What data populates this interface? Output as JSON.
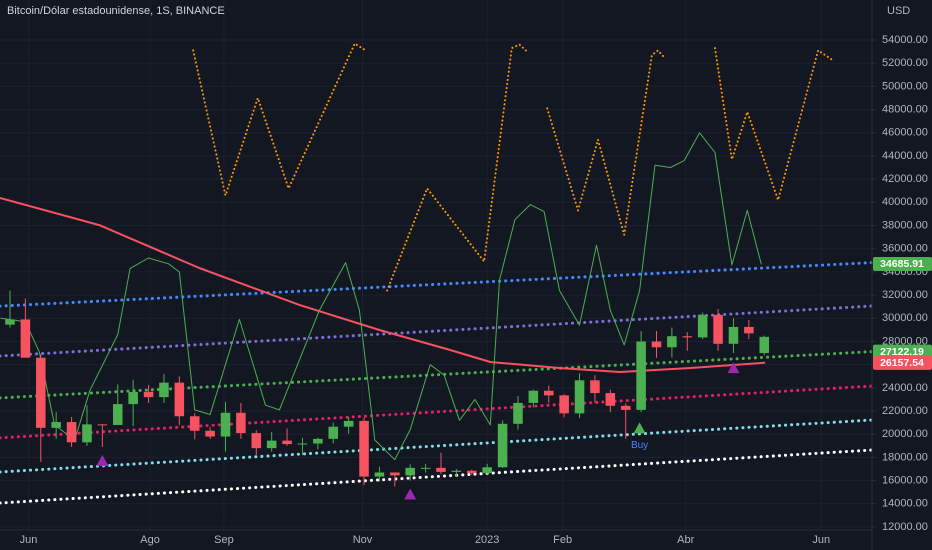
{
  "chart_data": {
    "type": "candlestick",
    "title": "Bitcoin/Dólar estadounidense, 1S, BINANCE",
    "y_label": "USD",
    "xlim": [
      -0.65,
      56
    ],
    "ylim": [
      11740,
      57450
    ],
    "grid": true,
    "xticks": [
      {
        "value": 1.2,
        "label": "Jun"
      },
      {
        "value": 9.1,
        "label": "Ago"
      },
      {
        "value": 13.9,
        "label": "Sep"
      },
      {
        "value": 22.9,
        "label": "Nov"
      },
      {
        "value": 31,
        "label": "2023"
      },
      {
        "value": 35.9,
        "label": "Feb"
      },
      {
        "value": 43.9,
        "label": "Abr"
      },
      {
        "value": 52.7,
        "label": "Jun"
      }
    ],
    "yticks": [
      {
        "value": 12000,
        "label": "12000.00"
      },
      {
        "value": 14000,
        "label": "14000.00"
      },
      {
        "value": 16000,
        "label": "16000.00"
      },
      {
        "value": 18000,
        "label": "18000.00"
      },
      {
        "value": 20000,
        "label": "20000.00"
      },
      {
        "value": 22000,
        "label": "22000.00"
      },
      {
        "value": 24000,
        "label": "24000.00"
      },
      {
        "value": 26000,
        "label": "26000.00"
      },
      {
        "value": 28000,
        "label": "28000.00"
      },
      {
        "value": 30000,
        "label": "30000.00"
      },
      {
        "value": 32000,
        "label": "32000.00"
      },
      {
        "value": 34000,
        "label": "34000.00"
      },
      {
        "value": 36000,
        "label": "36000.00"
      },
      {
        "value": 38000,
        "label": "38000.00"
      },
      {
        "value": 40000,
        "label": "40000.00"
      },
      {
        "value": 42000,
        "label": "42000.00"
      },
      {
        "value": 44000,
        "label": "44000.00"
      },
      {
        "value": 46000,
        "label": "46000.00"
      },
      {
        "value": 48000,
        "label": "48000.00"
      },
      {
        "value": 50000,
        "label": "50000.00"
      },
      {
        "value": 52000,
        "label": "52000.00"
      },
      {
        "value": 54000,
        "label": "54000.00"
      }
    ],
    "up_color": "#4caf50",
    "down_color": "#f7525f",
    "categories": [
      null,
      null,
      null,
      null,
      null,
      null,
      null,
      null,
      null,
      null,
      null,
      null,
      null,
      null,
      null,
      null,
      null,
      null,
      null,
      null,
      null,
      null,
      null,
      null,
      null,
      null,
      null,
      null,
      null,
      null,
      null,
      null,
      null,
      null,
      null,
      null,
      null,
      null,
      null,
      null,
      null,
      null,
      null,
      null,
      null,
      null,
      null,
      null,
      null,
      null
    ],
    "open": [
      29450,
      29900,
      26600,
      20550,
      21050,
      19300,
      20850,
      20800,
      22600,
      23650,
      23200,
      24450,
      21550,
      20300,
      19800,
      21850,
      20100,
      18800,
      19450,
      19150,
      19200,
      19600,
      20650,
      21150,
      16350,
      16700,
      16450,
      17100,
      17100,
      16750,
      16850,
      16650,
      17150,
      20900,
      22700,
      23750,
      23350,
      21800,
      24650,
      23550,
      22450,
      22100,
      28000,
      27500,
      28450,
      28350,
      30300,
      27800,
      29250,
      27000
    ],
    "high": [
      32400,
      31700,
      26900,
      21900,
      21500,
      22500,
      20900,
      24300,
      24700,
      24250,
      25200,
      25000,
      21800,
      20600,
      22800,
      22700,
      20350,
      20200,
      20500,
      19700,
      19700,
      21000,
      21500,
      21450,
      17200,
      16700,
      17400,
      17450,
      18400,
      17000,
      16950,
      17450,
      21200,
      23300,
      23850,
      24200,
      23450,
      25250,
      25100,
      23850,
      22650,
      28900,
      28900,
      29200,
      28800,
      30500,
      30800,
      30000,
      29850,
      28500
    ],
    "low": [
      29200,
      26600,
      17600,
      19600,
      18900,
      19000,
      18900,
      20800,
      20700,
      22700,
      22700,
      20800,
      19550,
      19600,
      18500,
      19600,
      18200,
      18500,
      19000,
      18200,
      18700,
      19200,
      20050,
      15600,
      15900,
      15500,
      16000,
      16700,
      16550,
      16350,
      16500,
      16550,
      17100,
      20400,
      22300,
      22700,
      21450,
      21400,
      22750,
      21900,
      19600,
      21900,
      26600,
      26600,
      27200,
      28200,
      27200,
      27000,
      28200,
      26800
    ],
    "close": [
      29900,
      26600,
      20550,
      21050,
      19300,
      20850,
      20800,
      22600,
      23650,
      23200,
      24450,
      21550,
      20300,
      19800,
      21850,
      20100,
      18800,
      19450,
      19150,
      19200,
      19600,
      20650,
      21150,
      16350,
      16700,
      16450,
      17100,
      17100,
      16750,
      16850,
      16650,
      17150,
      20900,
      22700,
      23750,
      23350,
      21800,
      24650,
      23550,
      22450,
      22100,
      28000,
      27500,
      28450,
      28350,
      30300,
      27800,
      29250,
      28700,
      28400
    ],
    "series": [
      {
        "color": "#448aff",
        "style": "dotted",
        "x": [
          -0.65,
          56
        ],
        "values": [
          31050,
          34800
        ]
      },
      {
        "color": "#7e6fd8",
        "style": "dotted",
        "x": [
          -0.65,
          56
        ],
        "values": [
          26750,
          31060
        ]
      },
      {
        "color": "#4caf50",
        "style": "dotted",
        "tag": true,
        "x": [
          -0.65,
          56
        ],
        "values": [
          23130,
          27122.19
        ]
      },
      {
        "color": "#e91e63",
        "style": "dotted",
        "x": [
          -0.65,
          56
        ],
        "values": [
          19680,
          24160
        ]
      },
      {
        "color": "#80deea",
        "style": "dotted",
        "x": [
          -0.65,
          56
        ],
        "values": [
          16740,
          21230
        ]
      },
      {
        "color": "#ffffff",
        "style": "dotted",
        "x": [
          -0.65,
          56
        ],
        "values": [
          14070,
          18640
        ]
      },
      {
        "color": "#f7525f",
        "style": "solid",
        "width": 2,
        "tag": true,
        "x": [
          -0.65,
          5.8,
          12.3,
          18.8,
          24,
          28.6,
          31.2,
          35.7,
          39.6,
          44.2,
          49
        ],
        "values": [
          40370,
          38040,
          34340,
          31150,
          28990,
          27260,
          26230,
          25710,
          25370,
          25710,
          26157.54
        ]
      },
      {
        "color": "#4caf50",
        "style": "solid",
        "width": 1,
        "tag": true,
        "x": [
          -0.6,
          1.0,
          1.9,
          2.9,
          4.2,
          5.2,
          7.0,
          7.8,
          9.0,
          10.3,
          11.0,
          12.0,
          13.0,
          14.9,
          16.6,
          17.5,
          20.1,
          21.8,
          22.7,
          23.7,
          25.0,
          26.0,
          27.3,
          28.2,
          29.2,
          30.2,
          31.2,
          31.8,
          32.8,
          33.8,
          34.7,
          35.7,
          37.0,
          38.1,
          39.0,
          39.9,
          40.9,
          41.9,
          42.9,
          43.8,
          44.8,
          45.8,
          46.9,
          47.9,
          48.8
        ],
        "values": [
          30000,
          29700,
          27100,
          20800,
          19500,
          23800,
          28600,
          34300,
          35200,
          34700,
          34000,
          22100,
          21700,
          29900,
          22500,
          22100,
          30700,
          34800,
          30700,
          19500,
          17800,
          20400,
          26000,
          25100,
          21200,
          23000,
          20800,
          33300,
          38500,
          39800,
          39200,
          32400,
          29400,
          36300,
          30700,
          27700,
          32400,
          43200,
          43000,
          43600,
          46000,
          44300,
          34600,
          39300,
          34685.91
        ]
      },
      {
        "color": "#ff9800",
        "style": "dotted",
        "width": 2,
        "x": [
          11.9,
          14.0,
          16.1,
          18.1,
          22.4,
          23.1,
          null,
          24.5,
          27.1,
          30.8,
          32.6,
          33.1,
          33.6,
          null,
          34.9,
          36.9,
          38.2,
          39.9,
          41.7,
          42.1,
          42.5,
          null,
          45.8,
          46.9,
          47.9,
          49.9,
          52.5,
          53.4
        ],
        "values": [
          53100,
          40600,
          49000,
          41200,
          53700,
          53100,
          null,
          32400,
          41200,
          34900,
          53300,
          53600,
          53000,
          null,
          48100,
          39300,
          45400,
          37200,
          52700,
          53100,
          52500,
          null,
          53300,
          43700,
          47800,
          40200,
          53100,
          52300
        ]
      }
    ],
    "markers": [
      {
        "color": "#9c27b0",
        "x": 6.0,
        "value": 17700
      },
      {
        "color": "#9c27b0",
        "x": 26.0,
        "value": 14800
      },
      {
        "color": "#9c27b0",
        "x": 47.0,
        "value": 25700
      },
      {
        "color": "#4caf50",
        "x": 40.9,
        "value": 20500,
        "label": "Buy"
      }
    ]
  }
}
